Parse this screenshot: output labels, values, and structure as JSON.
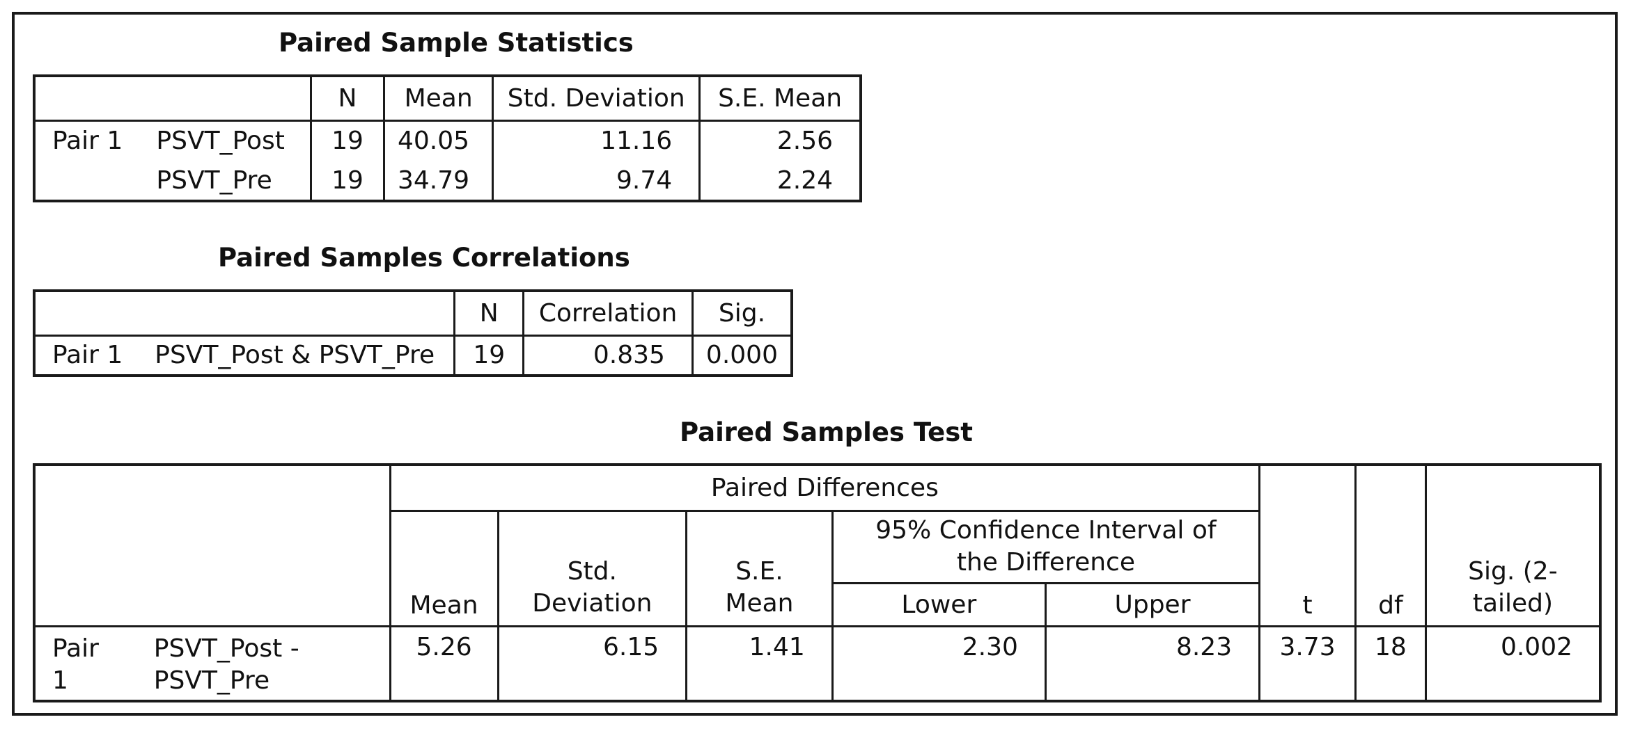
{
  "stats": {
    "title": "Paired Sample Statistics",
    "headers": {
      "n": "N",
      "mean": "Mean",
      "sd": "Std. Deviation",
      "se": "S.E. Mean"
    },
    "pair_label": "Pair 1",
    "rows": [
      {
        "var": "PSVT_Post",
        "n": "19",
        "mean": "40.05",
        "sd": "11.16",
        "se": "2.56"
      },
      {
        "var": "PSVT_Pre",
        "n": "19",
        "mean": "34.79",
        "sd": "9.74",
        "se": "2.24"
      }
    ]
  },
  "corr": {
    "title": "Paired Samples Correlations",
    "headers": {
      "n": "N",
      "corr": "Correlation",
      "sig": "Sig."
    },
    "row": {
      "pair": "Pair 1",
      "var": "PSVT_Post & PSVT_Pre",
      "n": "19",
      "corr": "0.835",
      "sig": "0.000"
    }
  },
  "test": {
    "title": "Paired Samples Test",
    "headers": {
      "paired_diff": "Paired Differences",
      "ci": "95% Confidence Interval of the Difference",
      "mean": "Mean",
      "sd_1": "Std.",
      "sd_2": "Deviation",
      "se_1": "S.E.",
      "se_2": "Mean",
      "lower": "Lower",
      "upper": "Upper",
      "t": "t",
      "df": "df",
      "sig_1": "Sig. (2-",
      "sig_2": "tailed)"
    },
    "row": {
      "pair_1": "Pair",
      "pair_2": "1",
      "var_1": "PSVT_Post -",
      "var_2": "PSVT_Pre",
      "mean": "5.26",
      "sd": "6.15",
      "se": "1.41",
      "lower": "2.30",
      "upper": "8.23",
      "t": "3.73",
      "df": "18",
      "sig": "0.002"
    }
  }
}
